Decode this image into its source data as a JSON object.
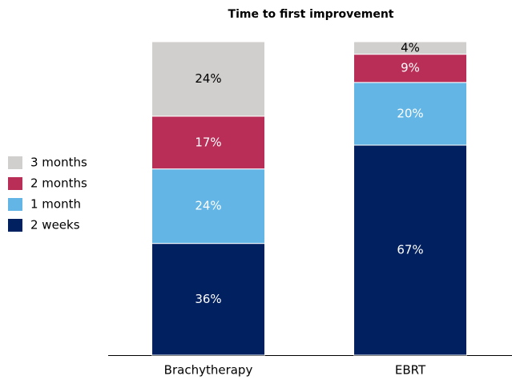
{
  "chart_data": {
    "type": "stacked_bar",
    "title": "Time to first improvement",
    "categories": [
      "Brachytherapy",
      "EBRT"
    ],
    "series": [
      {
        "name": "2 weeks",
        "color": "#002060",
        "values": [
          36,
          67
        ],
        "value_labels": [
          "36%",
          "67%"
        ]
      },
      {
        "name": "1 month",
        "color": "#62b5e5",
        "values": [
          24,
          20
        ],
        "value_labels": [
          "24%",
          "20%"
        ]
      },
      {
        "name": "2 months",
        "color": "#b92e57",
        "values": [
          17,
          9
        ],
        "value_labels": [
          "17%",
          "9%"
        ]
      },
      {
        "name": "3 months",
        "color": "#d0cfcd",
        "values": [
          24,
          4
        ],
        "value_labels": [
          "24%",
          "4%"
        ]
      }
    ],
    "legend": "left"
  }
}
